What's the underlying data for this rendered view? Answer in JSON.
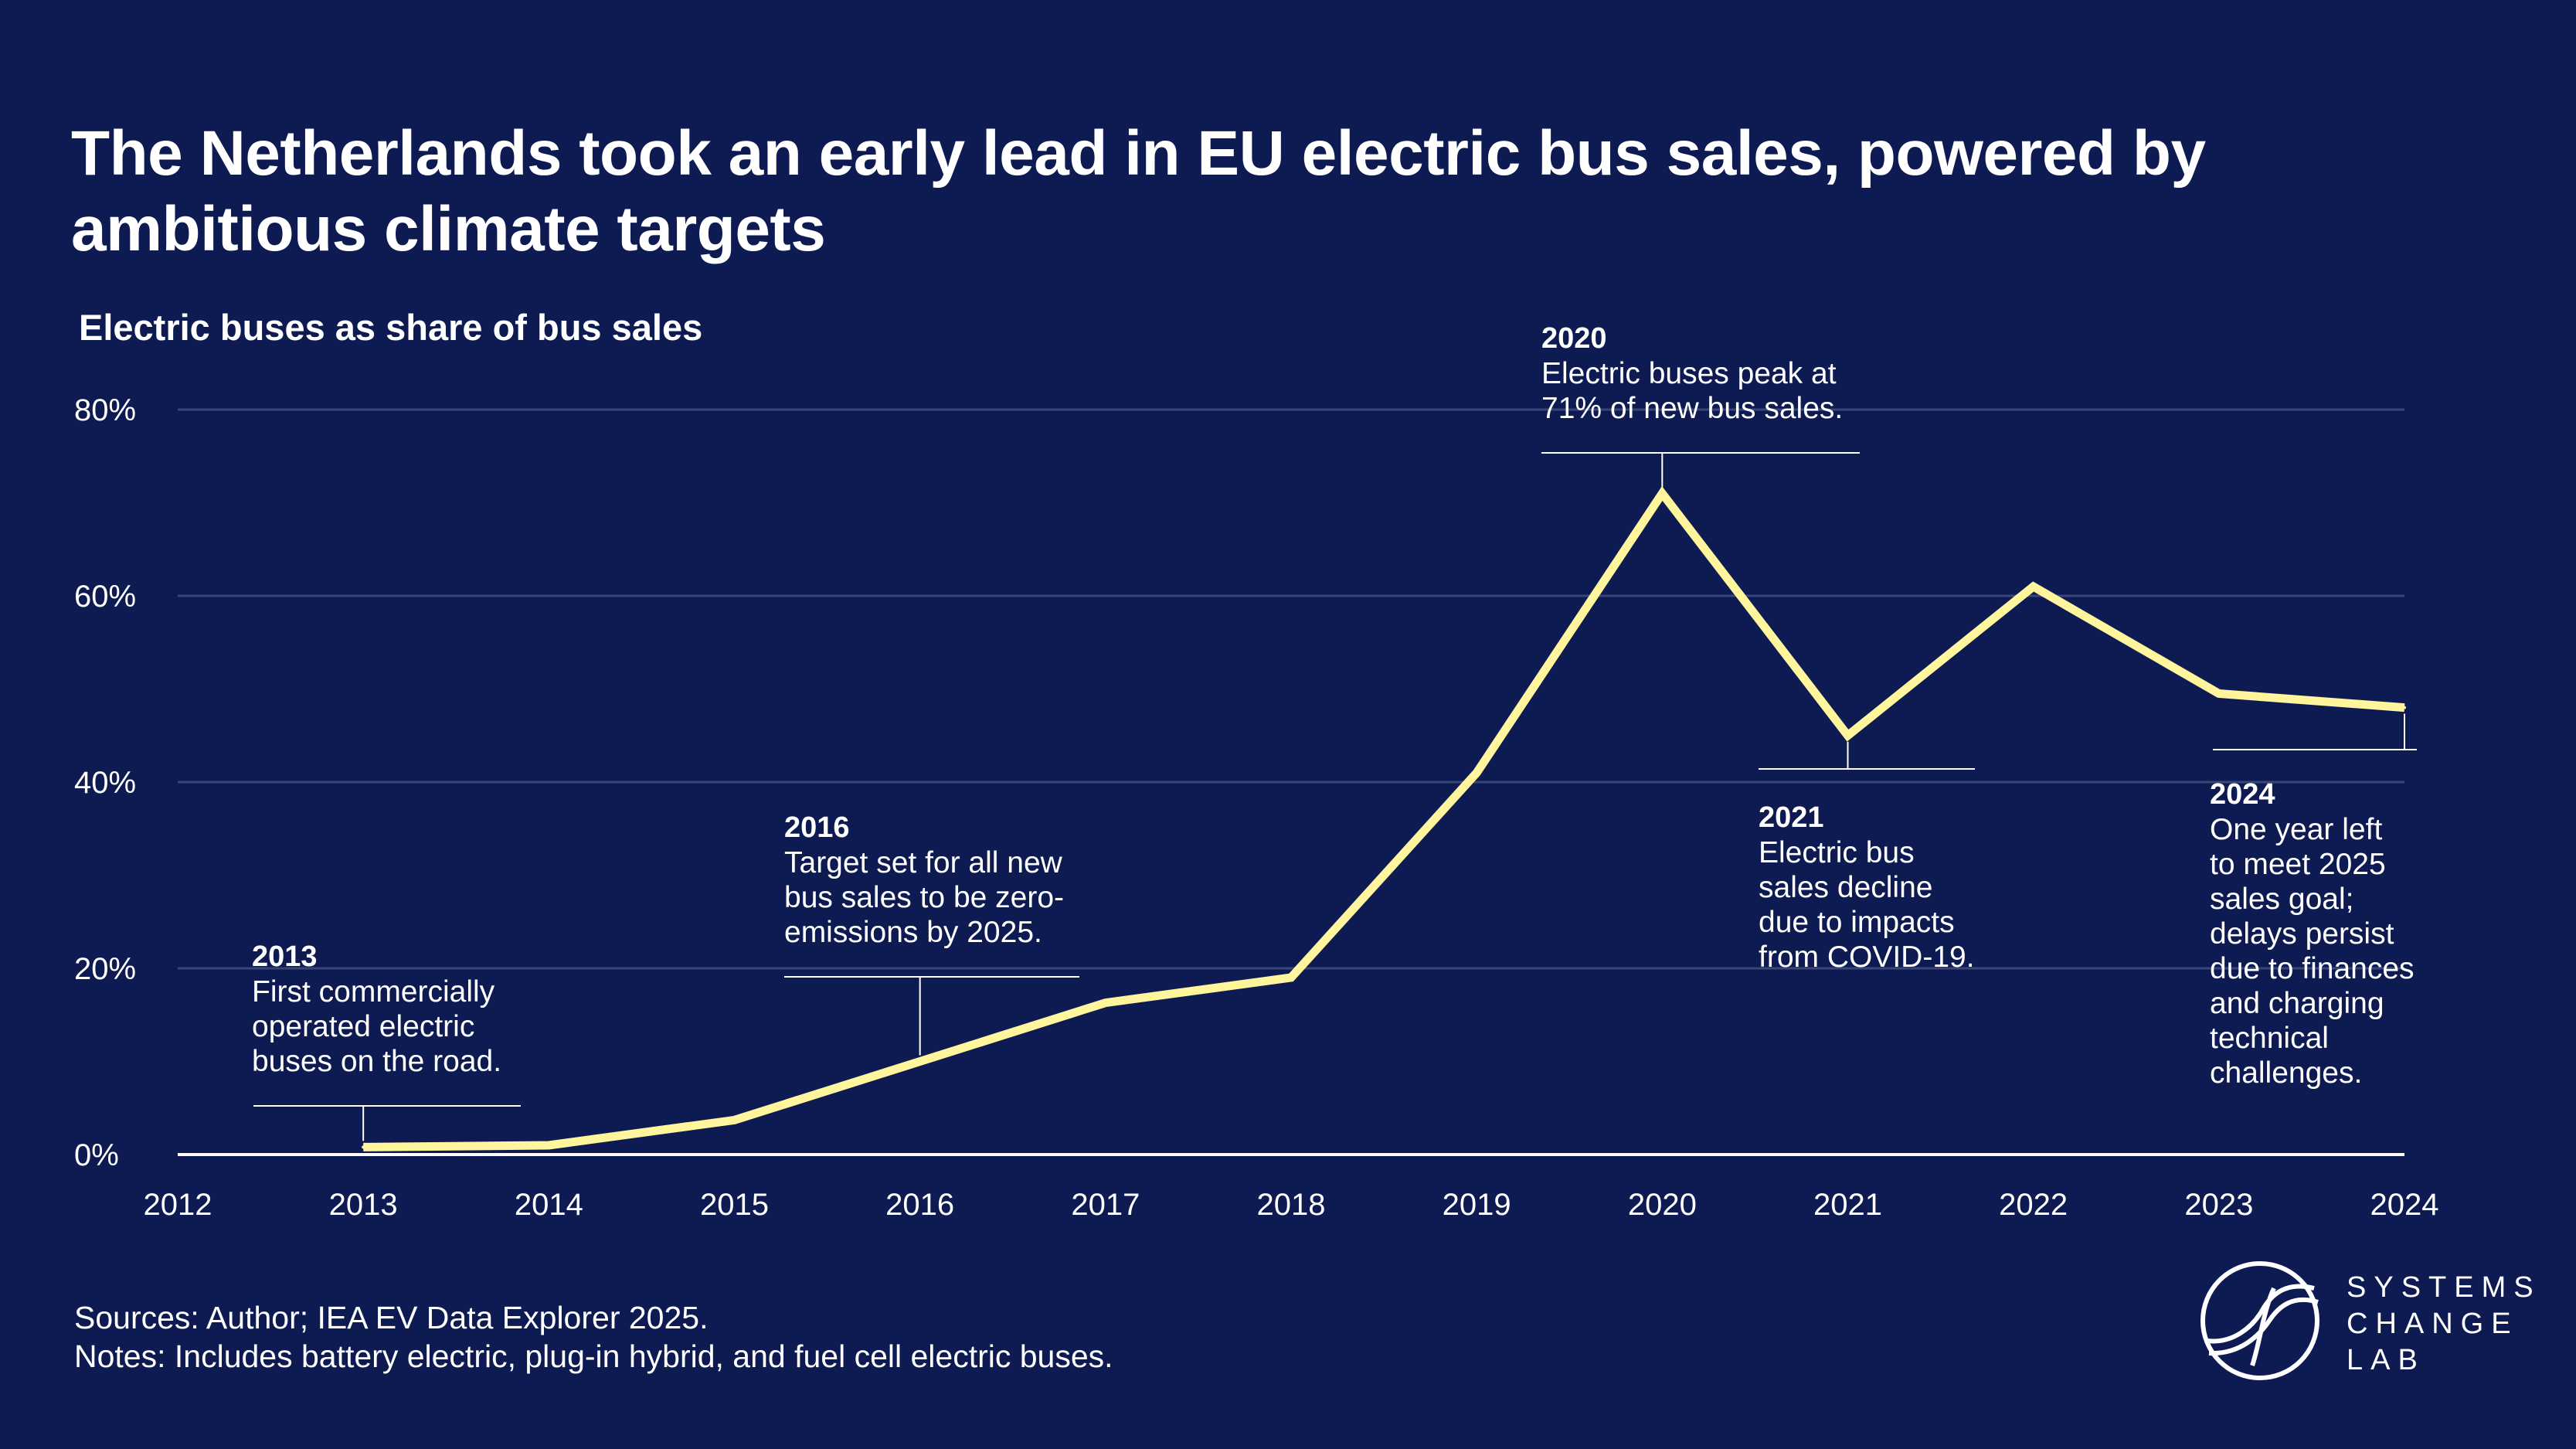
{
  "header": {
    "title": "The Netherlands took an early lead in EU electric bus sales, powered by ambitious climate targets",
    "subtitle": "Electric buses as share of bus sales"
  },
  "chart_data": {
    "type": "line",
    "title": "The Netherlands took an early lead in EU electric bus sales, powered by ambitious climate targets",
    "ylabel": "Electric buses as share of bus sales",
    "xlabel": "",
    "x_ticks": [
      "2012",
      "2013",
      "2014",
      "2015",
      "2016",
      "2017",
      "2018",
      "2019",
      "2020",
      "2021",
      "2022",
      "2023",
      "2024"
    ],
    "y_ticks": [
      "0%",
      "20%",
      "40%",
      "60%",
      "80%"
    ],
    "xlim": [
      2012,
      2024
    ],
    "ylim": [
      0,
      80
    ],
    "grid": true,
    "series": [
      {
        "name": "Electric bus share",
        "color": "#fff59d",
        "x": [
          2013,
          2014,
          2015,
          2016,
          2017,
          2018,
          2019,
          2020,
          2021,
          2022,
          2023,
          2024
        ],
        "values": [
          0.8,
          1.0,
          3.7,
          10.0,
          16.3,
          19.0,
          41.0,
          71.0,
          45.0,
          61.0,
          49.5,
          48.0
        ]
      }
    ],
    "annotations": [
      {
        "year_label": "2013",
        "text": [
          "First commercially",
          "operated electric",
          "buses on the road."
        ],
        "x": 2013,
        "y": 0.8,
        "placement": "above"
      },
      {
        "year_label": "2016",
        "text": [
          "Target set for all new",
          "bus sales to be zero-",
          "emissions by 2025."
        ],
        "x": 2016,
        "y": 10.0,
        "placement": "above"
      },
      {
        "year_label": "2020",
        "text": [
          "Electric buses peak at",
          "71% of new bus sales."
        ],
        "x": 2020,
        "y": 71.0,
        "placement": "above"
      },
      {
        "year_label": "2021",
        "text": [
          "Electric bus",
          "sales decline",
          "due to impacts",
          "from COVID-19."
        ],
        "x": 2021,
        "y": 45.0,
        "placement": "below"
      },
      {
        "year_label": "2024",
        "text": [
          "One year left",
          "to meet 2025",
          "sales goal;",
          "delays persist",
          "due to finances",
          "and charging",
          "technical",
          "challenges."
        ],
        "x": 2024,
        "y": 48.0,
        "placement": "below"
      }
    ]
  },
  "footer": {
    "sources": "Sources: Author; IEA EV Data Explorer 2025.",
    "notes": "Notes: Includes battery electric, plug-in hybrid, and fuel cell electric buses."
  },
  "logo": {
    "lines": [
      "SYSTEMS",
      "CHANGE",
      "LAB"
    ]
  },
  "colors": {
    "background": "#0d1b52",
    "line": "#fff59d",
    "grid": "#3a4677",
    "text": "#ffffff"
  }
}
